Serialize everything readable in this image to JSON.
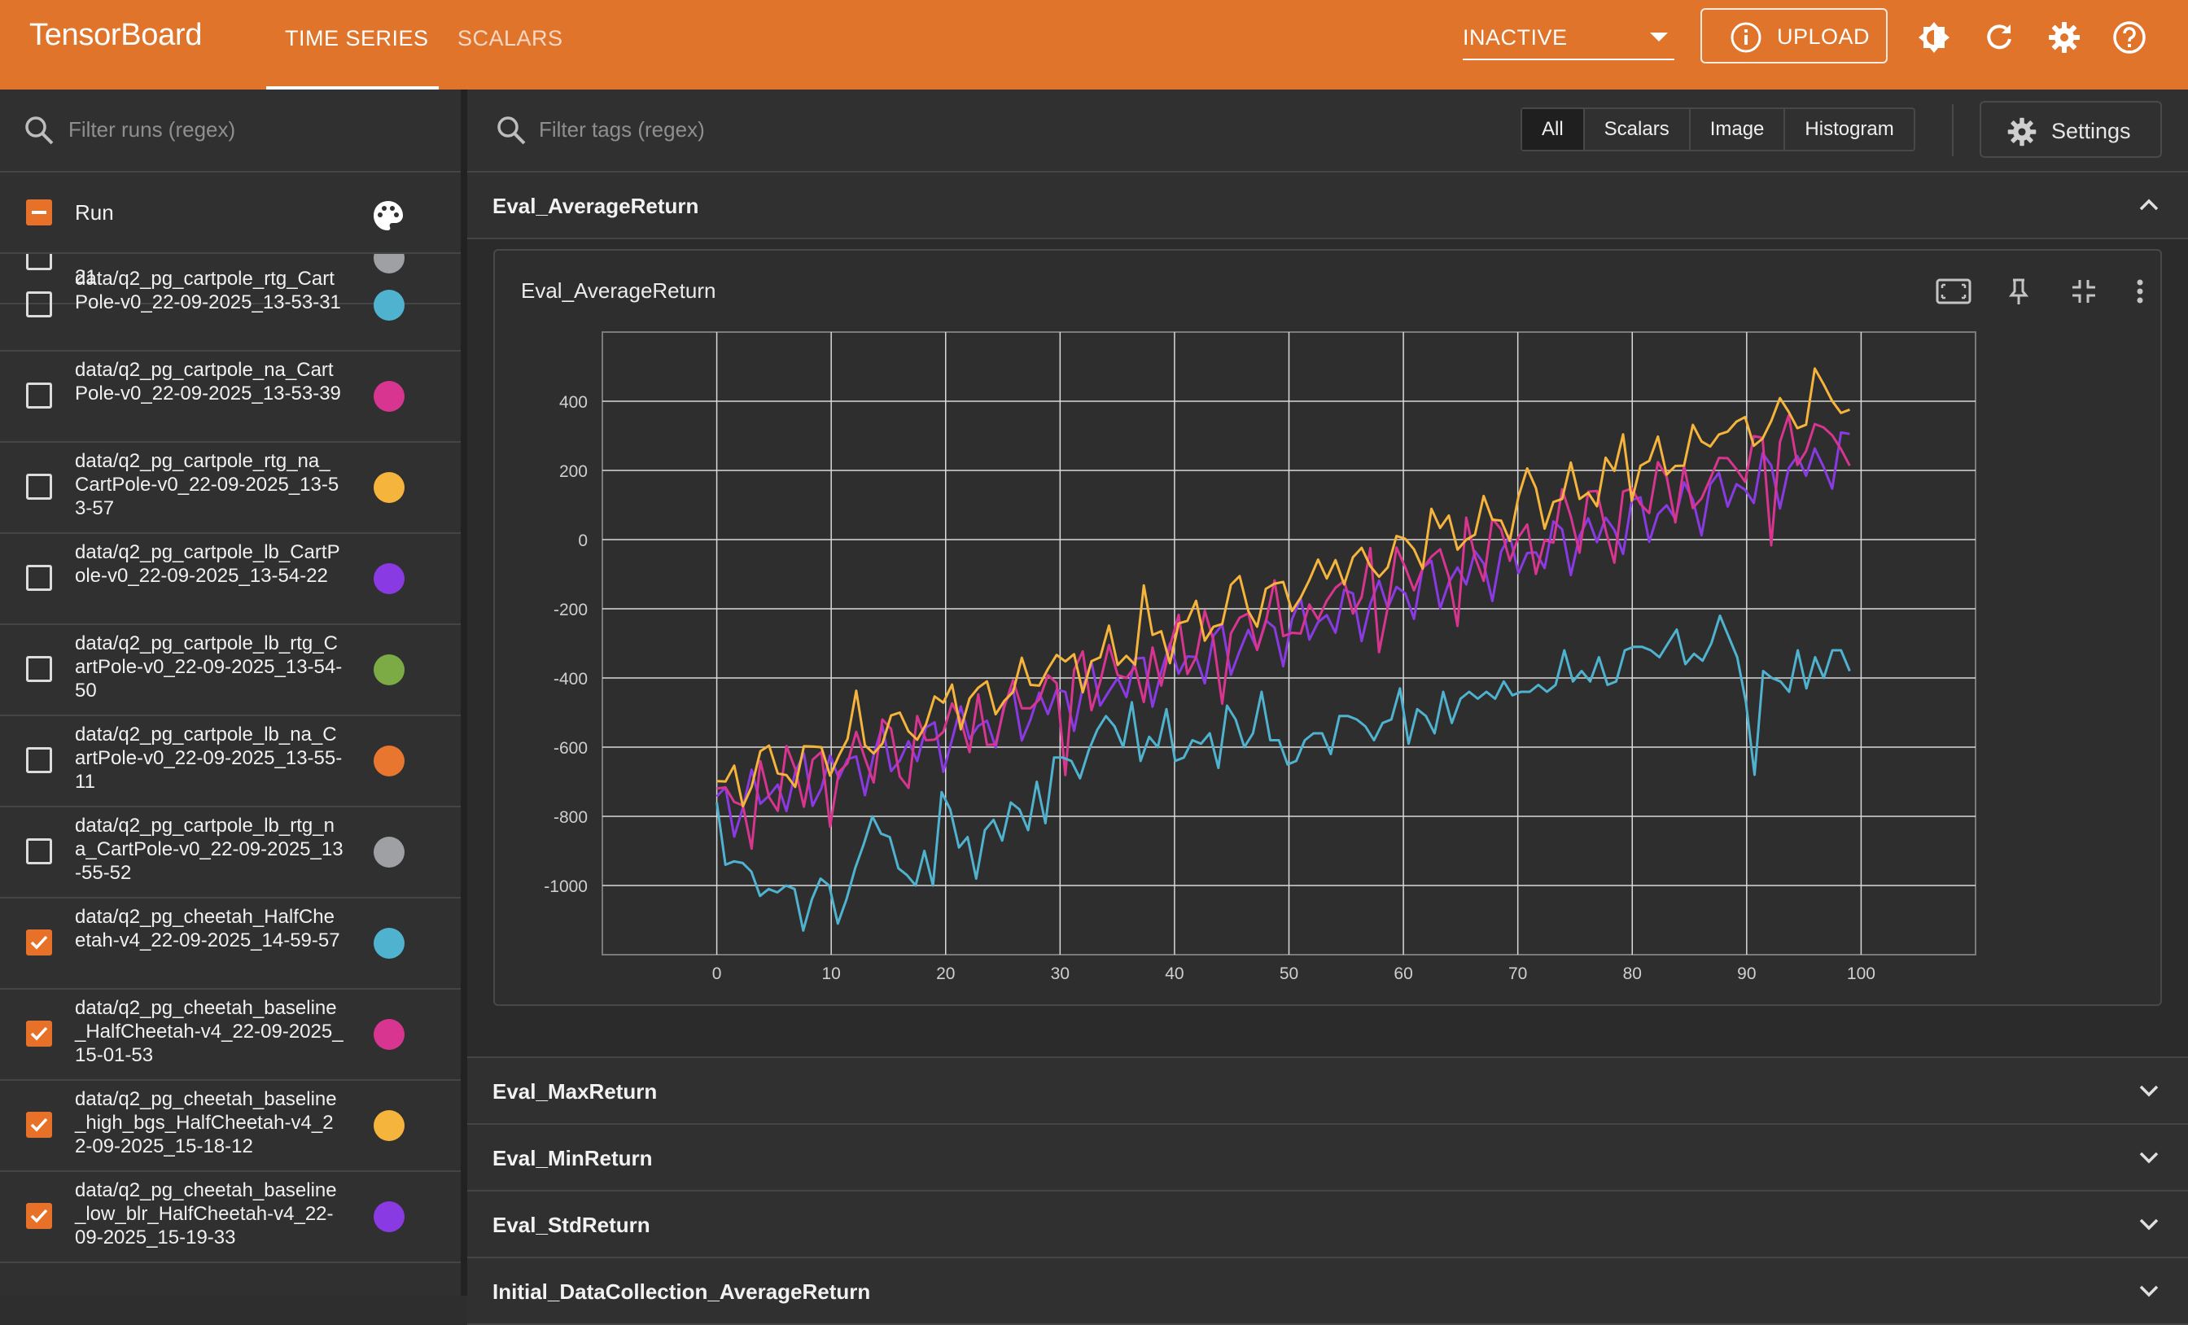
{
  "app": {
    "brand": "TensorBoard",
    "tabs": [
      "TIME SERIES",
      "SCALARS"
    ],
    "reload_select": "INACTIVE",
    "upload_label": "UPLOAD"
  },
  "left": {
    "filter_placeholder": "Filter runs (regex)",
    "header_label": "Run",
    "partial_row_text": "21",
    "runs": [
      {
        "name": "data/q2_pg_cartpole_rtg_CartPole-v0_22-09-2025_13-53-31",
        "checked": false,
        "color": "#4fb3cf"
      },
      {
        "name": "data/q2_pg_cartpole_na_CartPole-v0_22-09-2025_13-53-39",
        "checked": false,
        "color": "#d7358f"
      },
      {
        "name": "data/q2_pg_cartpole_rtg_na_CartPole-v0_22-09-2025_13-53-57",
        "checked": false,
        "color": "#f5b43b"
      },
      {
        "name": "data/q2_pg_cartpole_lb_CartPole-v0_22-09-2025_13-54-22",
        "checked": false,
        "color": "#8a3ae2"
      },
      {
        "name": "data/q2_pg_cartpole_lb_rtg_CartPole-v0_22-09-2025_13-54-50",
        "checked": false,
        "color": "#7cab46"
      },
      {
        "name": "data/q2_pg_cartpole_lb_na_CartPole-v0_22-09-2025_13-55-11",
        "checked": false,
        "color": "#e8762e"
      },
      {
        "name": "data/q2_pg_cartpole_lb_rtg_na_CartPole-v0_22-09-2025_13-55-52",
        "checked": false,
        "color": "#9fa0a4"
      },
      {
        "name": "data/q2_pg_cheetah_HalfCheetah-v4_22-09-2025_14-59-57",
        "checked": true,
        "color": "#4fb3cf"
      },
      {
        "name": "data/q2_pg_cheetah_baseline_HalfCheetah-v4_22-09-2025_15-01-53",
        "checked": true,
        "color": "#d7358f"
      },
      {
        "name": "data/q2_pg_cheetah_baseline_high_bgs_HalfCheetah-v4_22-09-2025_15-18-12",
        "checked": true,
        "color": "#f5b43b"
      },
      {
        "name": "data/q2_pg_cheetah_baseline_low_blr_HalfCheetah-v4_22-09-2025_15-19-33",
        "checked": true,
        "color": "#8a3ae2"
      }
    ]
  },
  "main": {
    "filter_placeholder": "Filter tags (regex)",
    "type_filters": [
      "All",
      "Scalars",
      "Image",
      "Histogram"
    ],
    "active_filter": "All",
    "settings_label": "Settings",
    "groups": [
      "Eval_AverageReturn",
      "Eval_MaxReturn",
      "Eval_MinReturn",
      "Eval_StdReturn",
      "Initial_DataCollection_AverageReturn"
    ],
    "expanded_group": "Eval_AverageReturn",
    "card_title": "Eval_AverageReturn"
  },
  "chart_data": {
    "type": "line",
    "title": "Eval_AverageReturn",
    "xlim": [
      -10,
      110
    ],
    "ylim": [
      -1200,
      600
    ],
    "x_ticks": [
      0,
      10,
      20,
      30,
      40,
      50,
      60,
      70,
      80,
      90,
      100
    ],
    "y_ticks": [
      -1000,
      -800,
      -600,
      -400,
      -200,
      0,
      200,
      400
    ],
    "grid": true,
    "series": [
      {
        "name": "data/q2_pg_cheetah_HalfCheetah-v4_22-09-2025_14-59-57",
        "color": "#4fb3cf",
        "y": [
          -760,
          -940,
          -930,
          -935,
          -960,
          -1030,
          -1010,
          -1020,
          -1000,
          -1010,
          -1130,
          -1040,
          -980,
          -1000,
          -1110,
          -1040,
          -950,
          -880,
          -800,
          -850,
          -860,
          -950,
          -970,
          -1000,
          -900,
          -1000,
          -730,
          -780,
          -890,
          -860,
          -980,
          -840,
          -810,
          -870,
          -760,
          -780,
          -840,
          -700,
          -820,
          -630,
          -630,
          -640,
          -690,
          -610,
          -550,
          -510,
          -540,
          -600,
          -470,
          -640,
          -570,
          -600,
          -490,
          -640,
          -630,
          -580,
          -590,
          -560,
          -660,
          -480,
          -520,
          -600,
          -560,
          -440,
          -580,
          -580,
          -650,
          -640,
          -580,
          -560,
          -560,
          -620,
          -510,
          -510,
          -520,
          -540,
          -580,
          -530,
          -520,
          -430,
          -590,
          -490,
          -510,
          -560,
          -440,
          -530,
          -460,
          -440,
          -460,
          -440,
          -460,
          -410,
          -450,
          -440,
          -440,
          -420,
          -440,
          -420,
          -320,
          -410,
          -380,
          -410,
          -340,
          -420,
          -410,
          -320,
          -310,
          -310,
          -320,
          -340,
          -300,
          -260,
          -360,
          -330,
          -350,
          -300,
          -220,
          -280,
          -340,
          -470,
          -680,
          -380,
          -400,
          -410,
          -440,
          -320,
          -430,
          -340,
          -400,
          -320,
          -320,
          -380
        ]
      },
      {
        "name": "data/q2_pg_cheetah_baseline_HalfCheetah-v4_22-09-2025_15-01-53",
        "color": "#d7358f"
      },
      {
        "name": "data/q2_pg_cheetah_baseline_high_bgs_HalfCheetah-v4_22-09-2025_15-18-12",
        "color": "#f5b43b"
      },
      {
        "name": "data/q2_pg_cheetah_baseline_low_blr_HalfCheetah-v4_22-09-2025_15-19-33",
        "color": "#8a3ae2"
      }
    ]
  }
}
